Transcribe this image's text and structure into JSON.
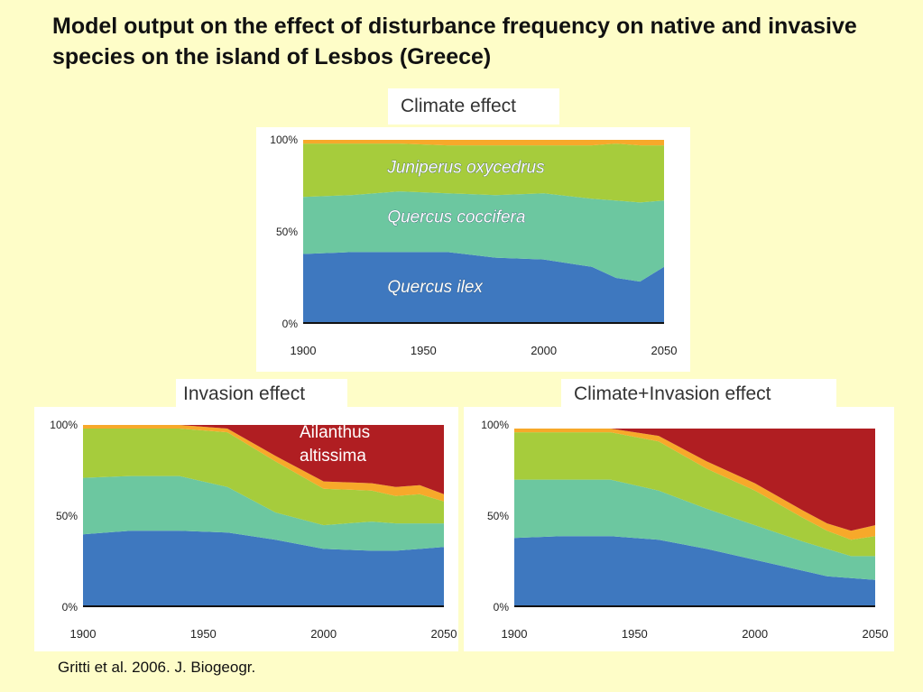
{
  "slide": {
    "title": "Model output on the effect of disturbance frequency on native and invasive species on the island of Lesbos (Greece)",
    "citation": "Gritti et al. 2006. J. Biogeogr."
  },
  "colors": {
    "background": "#FEFDC8",
    "black_band": "#111111",
    "quercus_ilex": "#3E78BF",
    "quercus_coccifera": "#6CC7A0",
    "juniperus_oxycedrus": "#A6CC3C",
    "top_band": "#F7A92A",
    "ailanthus_altissima": "#B01E22"
  },
  "chart_data": [
    {
      "type": "area",
      "stacked": true,
      "title": "Climate effect",
      "x": [
        1900,
        1920,
        1940,
        1960,
        1980,
        2000,
        2020,
        2030,
        2040,
        2050
      ],
      "xticks": [
        "1900",
        "1950",
        "2000",
        "2050"
      ],
      "yticks": [
        "0%",
        "50%",
        "100%"
      ],
      "xlim": [
        1900,
        2050
      ],
      "ylim": [
        0,
        100
      ],
      "series_labels": [
        "Juniperus oxycedrus",
        "Quercus coccifera",
        "Quercus ilex"
      ],
      "series": [
        {
          "key": "black_band",
          "values": [
            1,
            1,
            1,
            1,
            1,
            1,
            1,
            1,
            1,
            1
          ]
        },
        {
          "key": "quercus_ilex",
          "values": [
            37,
            38,
            38,
            38,
            35,
            34,
            30,
            24,
            22,
            30
          ]
        },
        {
          "key": "quercus_coccifera",
          "values": [
            31,
            31,
            33,
            32,
            34,
            36,
            37,
            42,
            43,
            36
          ]
        },
        {
          "key": "juniperus_oxycedrus",
          "values": [
            29,
            28,
            26,
            26,
            27,
            26,
            29,
            31,
            31,
            30
          ]
        },
        {
          "key": "top_band",
          "values": [
            2,
            2,
            2,
            3,
            3,
            3,
            3,
            2,
            3,
            3
          ]
        }
      ]
    },
    {
      "type": "area",
      "stacked": true,
      "title": "Invasion effect",
      "x": [
        1900,
        1920,
        1940,
        1960,
        1980,
        2000,
        2020,
        2030,
        2040,
        2050
      ],
      "xticks": [
        "1900",
        "1950",
        "2000",
        "2050"
      ],
      "yticks": [
        "0%",
        "50%",
        "100%"
      ],
      "xlim": [
        1900,
        2050
      ],
      "ylim": [
        0,
        100
      ],
      "series_labels": [
        "Ailanthus altissima"
      ],
      "series": [
        {
          "key": "black_band",
          "values": [
            1,
            1,
            1,
            1,
            1,
            1,
            1,
            1,
            1,
            1
          ]
        },
        {
          "key": "quercus_ilex",
          "values": [
            39,
            41,
            41,
            40,
            36,
            31,
            30,
            30,
            31,
            32
          ]
        },
        {
          "key": "quercus_coccifera",
          "values": [
            31,
            30,
            30,
            25,
            15,
            13,
            16,
            15,
            14,
            13
          ]
        },
        {
          "key": "juniperus_oxycedrus",
          "values": [
            27,
            26,
            26,
            30,
            28,
            20,
            17,
            15,
            16,
            12
          ]
        },
        {
          "key": "top_band",
          "values": [
            2,
            2,
            2,
            2,
            3,
            4,
            4,
            5,
            5,
            4
          ]
        },
        {
          "key": "ailanthus_altissima",
          "values": [
            0,
            0,
            0,
            2,
            17,
            31,
            32,
            34,
            33,
            38
          ]
        }
      ]
    },
    {
      "type": "area",
      "stacked": true,
      "title": "Climate+Invasion effect",
      "x": [
        1900,
        1920,
        1940,
        1960,
        1980,
        2000,
        2020,
        2030,
        2040,
        2050
      ],
      "xticks": [
        "1900",
        "1950",
        "2000",
        "2050"
      ],
      "yticks": [
        "0%",
        "50%",
        "100%"
      ],
      "xlim": [
        1900,
        2050
      ],
      "ylim": [
        0,
        100
      ],
      "series_labels": [],
      "series": [
        {
          "key": "black_band",
          "values": [
            1,
            1,
            1,
            1,
            1,
            1,
            1,
            1,
            1,
            1
          ]
        },
        {
          "key": "quercus_ilex",
          "values": [
            37,
            38,
            38,
            36,
            31,
            25,
            19,
            16,
            15,
            14
          ]
        },
        {
          "key": "quercus_coccifera",
          "values": [
            32,
            31,
            31,
            27,
            22,
            19,
            16,
            15,
            12,
            13
          ]
        },
        {
          "key": "juniperus_oxycedrus",
          "values": [
            26,
            26,
            26,
            27,
            22,
            19,
            13,
            10,
            9,
            11
          ]
        },
        {
          "key": "top_band",
          "values": [
            2,
            2,
            2,
            3,
            4,
            4,
            4,
            4,
            5,
            6
          ]
        },
        {
          "key": "ailanthus_altissima",
          "values": [
            0,
            0,
            0,
            4,
            18,
            30,
            45,
            52,
            56,
            53
          ]
        }
      ]
    }
  ]
}
